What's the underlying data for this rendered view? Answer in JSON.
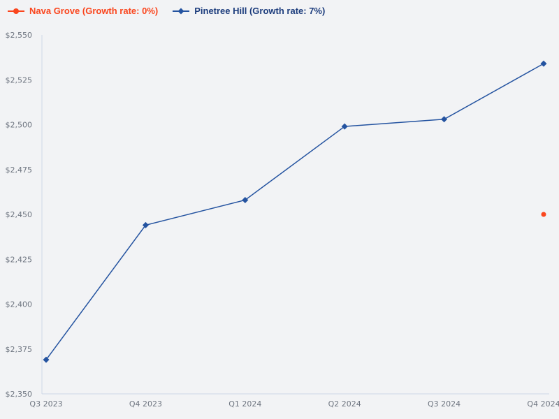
{
  "chart_data": {
    "type": "line",
    "title": "",
    "categories": [
      "Q3 2023",
      "Q4 2023",
      "Q1 2024",
      "Q2 2024",
      "Q3 2024",
      "Q4 2024"
    ],
    "series": [
      {
        "name": "Nava Grove (Growth rate: 0%)",
        "marker": "circle",
        "color": "#fa461e",
        "text_color": "#fa461e",
        "values": [
          null,
          null,
          null,
          null,
          null,
          2450
        ]
      },
      {
        "name": "Pinetree Hill (Growth rate: 7%)",
        "marker": "diamond",
        "color": "#2453a0",
        "text_color": "#1d3d7d",
        "values": [
          2369,
          2444,
          2458,
          2499,
          2503,
          2534
        ]
      }
    ],
    "ylim": [
      2350,
      2550
    ],
    "yticks": [
      {
        "value": 2350,
        "label": "$2,350"
      },
      {
        "value": 2375,
        "label": "$2,375"
      },
      {
        "value": 2400,
        "label": "$2,400"
      },
      {
        "value": 2425,
        "label": "$2,425"
      },
      {
        "value": 2450,
        "label": "$2,450"
      },
      {
        "value": 2475,
        "label": "$2,475"
      },
      {
        "value": 2500,
        "label": "$2,500"
      },
      {
        "value": 2525,
        "label": "$2,525"
      },
      {
        "value": 2550,
        "label": "$2,550"
      }
    ],
    "xlabel": "",
    "ylabel": "",
    "grid": false,
    "legend_position": "top-left",
    "background_color": "#f2f3f5",
    "axis_color": "#cdd7e8",
    "tick_label_color": "#6e7580"
  }
}
